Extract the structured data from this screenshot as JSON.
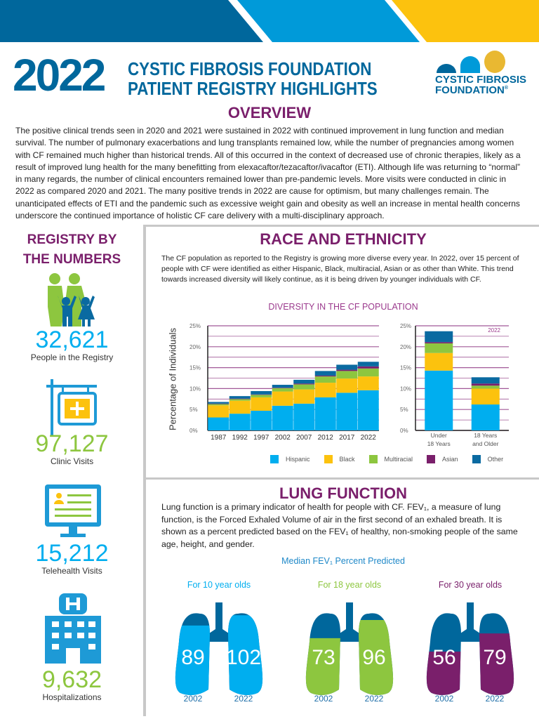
{
  "header": {
    "year": "2022",
    "title_line1": "CYSTIC FIBROSIS FOUNDATION",
    "title_line2": "PATIENT REGISTRY HIGHLIGHTS",
    "logo_line1": "CYSTIC FIBROSIS",
    "logo_line2": "FOUNDATION",
    "logo_mark": "®"
  },
  "colors": {
    "dark_blue": "#00679c",
    "light_blue": "#00aeef",
    "yellow": "#fcc20e",
    "green": "#8dc63f",
    "purple": "#7a1f6b",
    "other": "#0a6aa1"
  },
  "overview": {
    "title": "OVERVIEW",
    "text": "The positive clinical trends seen in 2020 and 2021 were sustained in 2022 with continued improvement in lung function and median survival. The number of pulmonary exacerbations and lung transplants remained low, while the number of pregnancies among women with CF remained much higher than historical trends. All of this occurred in the context of decreased use of chronic therapies, likely as a result of improved lung health for the many benefitting from elexacaftor/tezacaftor/ivacaftor (ETI). Although life was returning to “normal” in many regards, the number of clinical encounters remained lower than pre-pandemic levels. More visits were conducted in clinic in 2022 as compared 2020 and 2021. The many positive trends in 2022 are cause for optimism, but many challenges remain. The unanticipated effects of ETI and the pandemic such as excessive weight gain and obesity as well an increase in mental health concerns underscore the continued importance of holistic CF care delivery with a multi-disciplinary approach."
  },
  "registry": {
    "title_line1": "REGISTRY BY",
    "title_line2": "THE NUMBERS",
    "stats": [
      {
        "value": "32,621",
        "label": "People in the Registry",
        "icon": "family-icon"
      },
      {
        "value": "97,127",
        "label": "Clinic Visits",
        "icon": "clinic-sign-icon"
      },
      {
        "value": "15,212",
        "label": "Telehealth Visits",
        "icon": "computer-monitor-icon"
      },
      {
        "value": "9,632",
        "label": "Hospitalizations",
        "icon": "hospital-building-icon"
      }
    ]
  },
  "race": {
    "title": "RACE AND ETHNICITY",
    "text": "The CF population as reported to the Registry is growing more diverse every year. In 2022, over 15 percent of people with CF were identified as either Hispanic, Black, multiracial, Asian or as other than White. This trend towards increased diversity will likely continue, as it is being driven by younger individuals with CF."
  },
  "chart_data": [
    {
      "type": "bar",
      "stacked": true,
      "title": "DIVERSITY IN THE CF POPULATION",
      "ylabel": "Percentage of Individuals",
      "ylim": [
        0,
        25
      ],
      "yticks": [
        "0%",
        "5%",
        "10%",
        "15%",
        "20%",
        "25%"
      ],
      "grid": true,
      "categories": [
        "1987",
        "1992",
        "1997",
        "2002",
        "2007",
        "2012",
        "2017",
        "2022"
      ],
      "series": [
        {
          "name": "Hispanic",
          "color": "#00aeef",
          "values": [
            3.1,
            4.0,
            4.7,
            5.9,
            6.4,
            7.9,
            9.0,
            9.6
          ]
        },
        {
          "name": "Black",
          "color": "#fcc20e",
          "values": [
            2.9,
            3.1,
            3.2,
            3.4,
            3.4,
            3.5,
            3.4,
            3.3
          ]
        },
        {
          "name": "Multiracial",
          "color": "#8dc63f",
          "values": [
            0.3,
            0.4,
            0.6,
            0.8,
            1.2,
            1.5,
            1.8,
            1.9
          ]
        },
        {
          "name": "Asian",
          "color": "#7a1f6b",
          "values": [
            0.1,
            0.1,
            0.1,
            0.1,
            0.2,
            0.2,
            0.3,
            0.5
          ]
        },
        {
          "name": "Other",
          "color": "#0a6aa1",
          "values": [
            0.4,
            0.6,
            0.8,
            0.7,
            0.9,
            1.1,
            1.2,
            1.1
          ]
        }
      ]
    },
    {
      "type": "bar",
      "stacked": true,
      "annotation": "2022",
      "ylim": [
        0,
        25
      ],
      "yticks": [
        "0%",
        "5%",
        "10%",
        "15%",
        "20%",
        "25%"
      ],
      "grid": true,
      "categories": [
        "Under 18 Years",
        "18 Years and Older"
      ],
      "category_lines": [
        [
          "Under",
          "18 Years"
        ],
        [
          "18 Years",
          "and Older"
        ]
      ],
      "series": [
        {
          "name": "Hispanic",
          "color": "#00aeef",
          "values": [
            14.3,
            6.2
          ]
        },
        {
          "name": "Black",
          "color": "#fcc20e",
          "values": [
            4.2,
            3.8
          ]
        },
        {
          "name": "Multiracial",
          "color": "#8dc63f",
          "values": [
            2.3,
            0.7
          ]
        },
        {
          "name": "Asian",
          "color": "#7a1f6b",
          "values": [
            0.3,
            0.5
          ]
        },
        {
          "name": "Other",
          "color": "#0a6aa1",
          "values": [
            2.6,
            1.5
          ]
        }
      ]
    }
  ],
  "legend": [
    "Hispanic",
    "Black",
    "Multiracial",
    "Asian",
    "Other"
  ],
  "lung": {
    "title": "LUNG FUNCTION",
    "text": "Lung function is a primary indicator of health for people with CF. FEV₁, a measure of lung function, is the Forced Exhaled Volume of air in the first second of an exhaled breath. It is shown as a percent predicted based on the FEV₁ of healthy, non-smoking people of the same age, height, and gender.",
    "subtitle": "Median FEV₁ Percent Predicted",
    "groups": [
      {
        "label": "For 10 year olds",
        "color": "#00aeef",
        "values": [
          {
            "year": "2002",
            "value": "89"
          },
          {
            "year": "2022",
            "value": "102"
          }
        ]
      },
      {
        "label": "For 18 year olds",
        "color": "#8dc63f",
        "values": [
          {
            "year": "2002",
            "value": "73"
          },
          {
            "year": "2022",
            "value": "96"
          }
        ]
      },
      {
        "label": "For 30 year olds",
        "color": "#7a1f6b",
        "values": [
          {
            "year": "2002",
            "value": "56"
          },
          {
            "year": "2022",
            "value": "79"
          }
        ]
      }
    ]
  }
}
